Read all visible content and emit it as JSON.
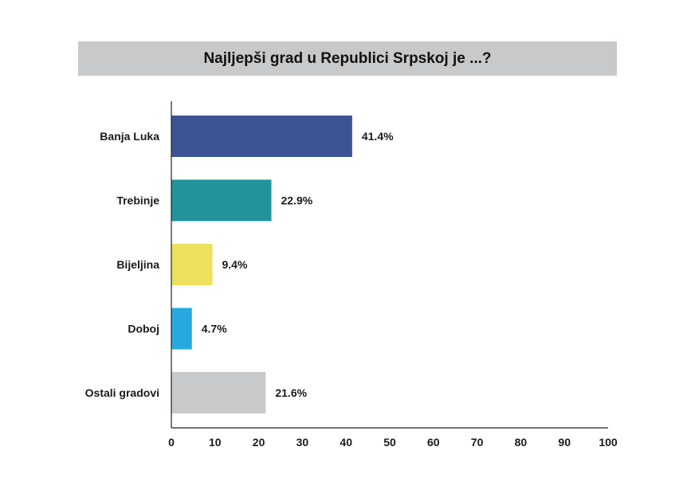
{
  "chart_data": {
    "type": "bar",
    "orientation": "horizontal",
    "title": "Najljepši grad u Republici Srpskoj je ...?",
    "categories": [
      "Banja Luka",
      "Trebinje",
      "Bijeljina",
      "Doboj",
      "Ostali gradovi"
    ],
    "values": [
      41.4,
      22.9,
      9.4,
      4.7,
      21.6
    ],
    "value_labels": [
      "41.4%",
      "22.9%",
      "9.4%",
      "4.7%",
      "21.6%"
    ],
    "colors": [
      "#3d5494",
      "#20949a",
      "#ece05c",
      "#27a9e0",
      "#c8c9ca"
    ],
    "xlim": [
      0,
      100
    ],
    "xticks": [
      "0",
      "10",
      "20",
      "30",
      "40",
      "50",
      "60",
      "70",
      "80",
      "90",
      "100"
    ],
    "xlabel": "",
    "ylabel": "",
    "grid": false,
    "legend": "none"
  }
}
